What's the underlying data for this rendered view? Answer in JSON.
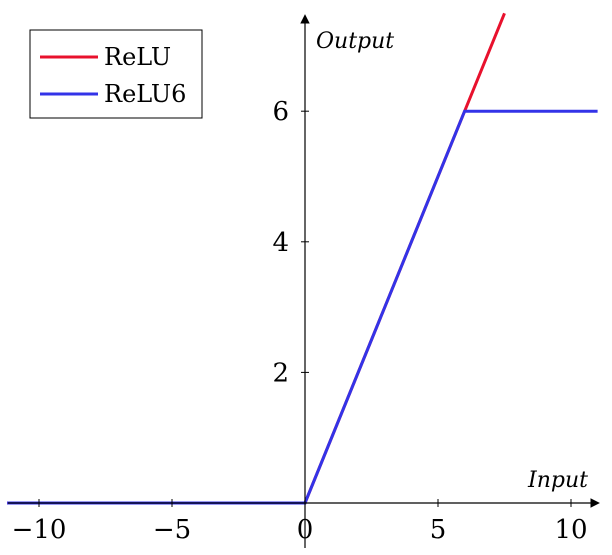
{
  "chart_data": {
    "type": "line",
    "xlabel": "Input",
    "ylabel": "Output",
    "xlim": [
      -11.2,
      11
    ],
    "ylim": [
      0,
      7.5
    ],
    "x_ticks": [
      -10,
      -5,
      0,
      5,
      10
    ],
    "x_tick_labels": [
      "−10",
      "−5",
      "0",
      "5",
      "10"
    ],
    "y_ticks": [
      2,
      4,
      6
    ],
    "y_tick_labels": [
      "2",
      "4",
      "6"
    ],
    "grid": false,
    "legend_position": "top-left",
    "series": [
      {
        "name": "ReLU",
        "color": "#e8112d",
        "points": [
          [
            -11.2,
            0
          ],
          [
            0,
            0
          ],
          [
            7.5,
            7.5
          ]
        ]
      },
      {
        "name": "ReLU6",
        "color": "#3333e8",
        "points": [
          [
            -11.2,
            0
          ],
          [
            0,
            0
          ],
          [
            6,
            6
          ],
          [
            11,
            6
          ]
        ]
      }
    ]
  }
}
